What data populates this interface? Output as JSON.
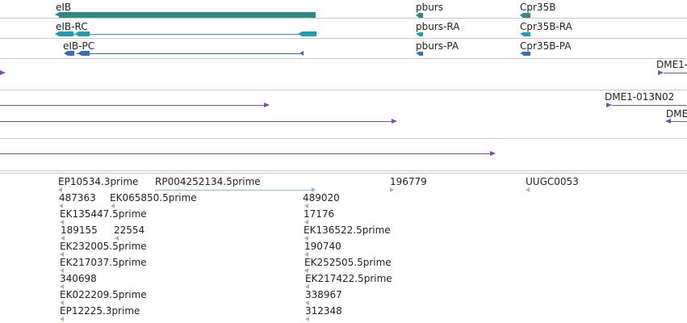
{
  "colors": {
    "gene": "#2e8b8b",
    "transcript_cyan": "#17a1b8",
    "transcript_blue": "#2f6fc4",
    "clone": "#7a4fa5",
    "est": "#8fb8e3",
    "divider": "#c8c8c8"
  },
  "gene_track": {
    "items": [
      {
        "label": "eIB"
      },
      {
        "label": "pburs"
      },
      {
        "label": "Cpr35B"
      }
    ]
  },
  "transcript_track": {
    "items": [
      {
        "label": "eIB-RC"
      },
      {
        "label": "pburs-RA"
      },
      {
        "label": "Cpr35B-RA"
      },
      {
        "label": "eIB-PC"
      },
      {
        "label": "pburs-PA"
      },
      {
        "label": "Cpr35B-PA"
      }
    ]
  },
  "clone_track": {
    "labels": [
      "DME1-",
      "DME1-013N02",
      "DME"
    ]
  },
  "est_track": {
    "labels": [
      "EP10534.3prime",
      "RP004252134.5prime",
      "196779",
      "UUGC0053",
      "487363",
      "EK065850.5prime",
      "489020",
      "EK135447.5prime",
      "17176",
      "189155",
      "22554",
      "EK136522.5prime",
      "EK232005.5prime",
      "190740",
      "EK217037.5prime",
      "EK252505.5prime",
      "340698",
      "EK217422.5prime",
      "EK022209.5prime",
      "338967",
      "EP12225.3prime",
      "312348"
    ]
  }
}
